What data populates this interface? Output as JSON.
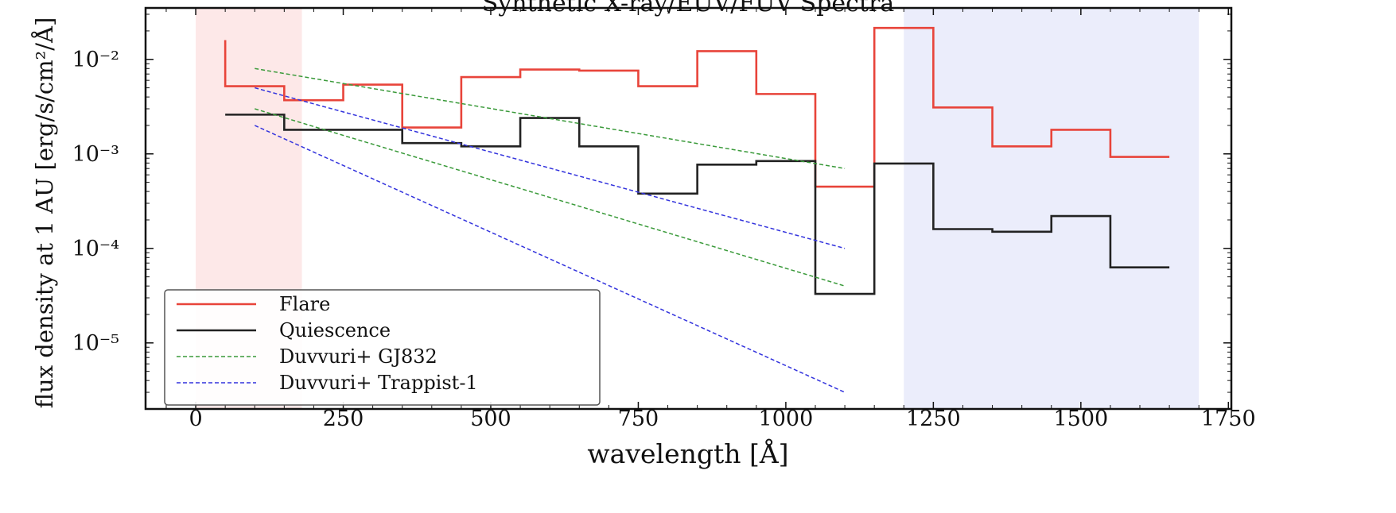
{
  "chart_data": {
    "type": "line",
    "title": "Synthetic X-ray/EUV/FUV Spectra",
    "xlabel": "wavelength [Å]",
    "ylabel": "flux density at 1 AU [erg/s/cm²/Å]",
    "xlim": [
      -85,
      1755
    ],
    "ylim": [
      2e-06,
      0.035
    ],
    "yscale": "log",
    "grid": false,
    "legend_position": "lower-left",
    "x_ticks": [
      0,
      250,
      500,
      750,
      1000,
      1250,
      1500,
      1750
    ],
    "x_tick_labels": [
      "0",
      "250",
      "500",
      "750",
      "1000",
      "1250",
      "1500",
      "1750"
    ],
    "y_ticks": [
      1e-05,
      0.0001,
      0.001,
      0.01
    ],
    "y_tick_labels": [
      "10⁻⁵",
      "10⁻⁴",
      "10⁻³",
      "10⁻²"
    ],
    "shaded_regions": [
      {
        "x": [
          0,
          180
        ],
        "color": "#fde8e8"
      },
      {
        "x": [
          1200,
          1700
        ],
        "color": "#ebedfb"
      }
    ],
    "series": [
      {
        "name": "Flare",
        "color": "#e8443a",
        "style": "step",
        "edges": [
          50,
          150,
          250,
          350,
          450,
          550,
          650,
          750,
          850,
          950,
          1050,
          1150,
          1250,
          1350,
          1450,
          1550,
          1650
        ],
        "values": [
          0.0052,
          0.0037,
          0.0054,
          0.0019,
          0.0065,
          0.0078,
          0.0076,
          0.0052,
          0.0122,
          0.0043,
          0.00045,
          0.0215,
          0.0031,
          0.0012,
          0.0018,
          0.00093
        ],
        "start_value": 0.016
      },
      {
        "name": "Quiescence",
        "color": "#222222",
        "style": "step",
        "edges": [
          50,
          150,
          250,
          350,
          450,
          550,
          650,
          750,
          850,
          950,
          1050,
          1150,
          1250,
          1350,
          1450,
          1550,
          1650
        ],
        "values": [
          0.0026,
          0.0018,
          0.0018,
          0.0013,
          0.0012,
          0.0024,
          0.0012,
          0.00038,
          0.00077,
          0.00084,
          3.3e-05,
          0.00079,
          0.00016,
          0.00015,
          0.00022,
          6.3e-05
        ],
        "start_value": 0.0026
      },
      {
        "name": "Duvvuri+ GJ832",
        "color": "#3a9a3a",
        "style": "dashed",
        "lines": [
          {
            "x": [
              100,
              1100
            ],
            "y": [
              0.008,
              0.0007
            ]
          },
          {
            "x": [
              100,
              1100
            ],
            "y": [
              0.003,
              4e-05
            ]
          }
        ]
      },
      {
        "name": "Duvvuri+ Trappist-1",
        "color": "#3333dd",
        "style": "dashed",
        "lines": [
          {
            "x": [
              100,
              1100
            ],
            "y": [
              0.005,
              0.0001
            ]
          },
          {
            "x": [
              100,
              1100
            ],
            "y": [
              0.002,
              3e-06
            ]
          }
        ]
      }
    ]
  }
}
